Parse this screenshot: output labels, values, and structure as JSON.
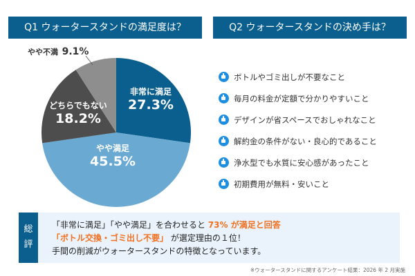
{
  "q1": {
    "title": "Q1 ウォータースタンドの満足度は？"
  },
  "q2": {
    "title": "Q2 ウォータースタンドの決め手は？",
    "items": [
      "ボトルやゴミ出しが不要なこと",
      "毎月の料金が定額で分かりやすいこと",
      "デザインが省スペースでおしゃれなこと",
      "解約金の条件がない・良心的であること",
      "浄水型でも水質に安心感があったこと",
      "初期費用が無料・安いこと"
    ],
    "icon": "thumbs-up-icon"
  },
  "chart_data": {
    "type": "pie",
    "start": "top",
    "direction": "clockwise",
    "categories": [
      "非常に満足",
      "やや満足",
      "どちらでもない",
      "やや不満"
    ],
    "values": [
      27.3,
      45.5,
      18.2,
      9.1
    ],
    "labels": [
      "27.3%",
      "45.5%",
      "18.2%",
      "9.1%"
    ],
    "colors": [
      "#0b5f8e",
      "#6aaad2",
      "#4d4d4d",
      "#8e8e8e"
    ]
  },
  "summary": {
    "tag1": "総",
    "tag2": "評",
    "line1a": "「非常に満足」「やや満足」を合わせると ",
    "line1b": "73% が満足と回答",
    "line2a": "「ボトル交換・ゴミ出し不要」",
    "line2b": " が選定理由の１位！",
    "line3": "手間の削減がウォータースタンドの特徴となっています。"
  },
  "footnote": "※ウォータースタンドに関するアンケート結果：2026 年 2 月実施"
}
